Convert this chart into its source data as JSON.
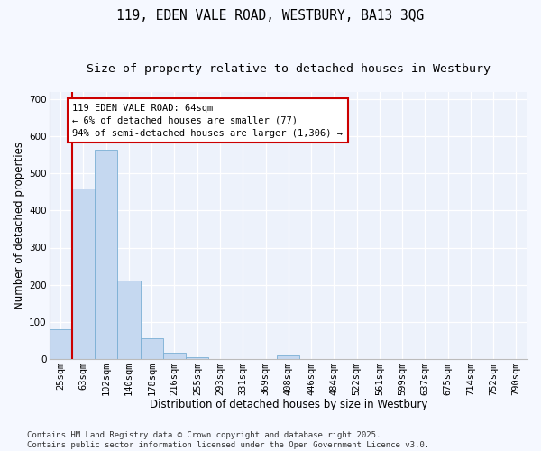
{
  "title1": "119, EDEN VALE ROAD, WESTBURY, BA13 3QG",
  "title2": "Size of property relative to detached houses in Westbury",
  "xlabel": "Distribution of detached houses by size in Westbury",
  "ylabel": "Number of detached properties",
  "categories": [
    "25sqm",
    "63sqm",
    "102sqm",
    "140sqm",
    "178sqm",
    "216sqm",
    "255sqm",
    "293sqm",
    "331sqm",
    "369sqm",
    "408sqm",
    "446sqm",
    "484sqm",
    "522sqm",
    "561sqm",
    "599sqm",
    "637sqm",
    "675sqm",
    "714sqm",
    "752sqm",
    "790sqm"
  ],
  "values": [
    80,
    460,
    565,
    210,
    55,
    17,
    5,
    0,
    0,
    0,
    8,
    0,
    0,
    0,
    0,
    0,
    0,
    0,
    0,
    0,
    0
  ],
  "bar_color": "#c5d8f0",
  "bar_edge_color": "#7aafd4",
  "red_line_color": "#cc0000",
  "annotation_text": "119 EDEN VALE ROAD: 64sqm\n← 6% of detached houses are smaller (77)\n94% of semi-detached houses are larger (1,306) →",
  "annotation_box_color": "#ffffff",
  "annotation_box_edge": "#cc0000",
  "ylim": [
    0,
    720
  ],
  "yticks": [
    0,
    100,
    200,
    300,
    400,
    500,
    600,
    700
  ],
  "bg_color": "#edf2fb",
  "fig_color": "#f5f8ff",
  "footer_text": "Contains HM Land Registry data © Crown copyright and database right 2025.\nContains public sector information licensed under the Open Government Licence v3.0.",
  "title1_fontsize": 10.5,
  "title2_fontsize": 9.5,
  "axis_label_fontsize": 8.5,
  "tick_fontsize": 7.5,
  "footer_fontsize": 6.5,
  "annot_fontsize": 7.5
}
